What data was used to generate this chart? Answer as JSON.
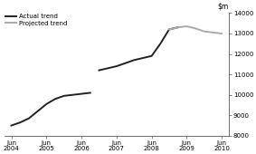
{
  "actual_seg1_x": [
    2004.5,
    2004.75,
    2005.0,
    2005.25,
    2005.5,
    2005.75,
    2006.0,
    2006.25,
    2006.5,
    2006.75
  ],
  "actual_seg1_y": [
    8500,
    8650,
    8850,
    9200,
    9550,
    9800,
    9950,
    10000,
    10050,
    10100
  ],
  "actual_seg2_x": [
    2007.0,
    2007.25,
    2007.5,
    2007.75,
    2008.0,
    2008.25,
    2008.5,
    2008.75,
    2009.0,
    2009.25
  ],
  "actual_seg2_y": [
    11200,
    11300,
    11400,
    11550,
    11700,
    11800,
    11900,
    12500,
    13200,
    13300
  ],
  "projected_x": [
    2009.0,
    2009.25,
    2009.5,
    2009.75,
    2010.0,
    2010.25,
    2010.5
  ],
  "projected_y": [
    13200,
    13300,
    13350,
    13250,
    13100,
    13050,
    13000
  ],
  "actual_color": "#222222",
  "projected_color": "#aaaaaa",
  "ylim": [
    8000,
    14000
  ],
  "xlim": [
    2004.3,
    2010.7
  ],
  "yticks": [
    8000,
    9000,
    10000,
    11000,
    12000,
    13000,
    14000
  ],
  "xtick_positions": [
    2004.5,
    2005.5,
    2006.5,
    2007.5,
    2008.5,
    2009.5,
    2010.5
  ],
  "xtick_labels": [
    "Jun\n2004",
    "Jun\n2005",
    "Jun\n2006",
    "Jun\n2007",
    "Jun\n2008",
    "Jun\n2009",
    "Jun\n2010"
  ],
  "legend_actual": "Actual trend",
  "legend_projected": "Projected trend",
  "background_color": "#ffffff",
  "linewidth": 1.4
}
